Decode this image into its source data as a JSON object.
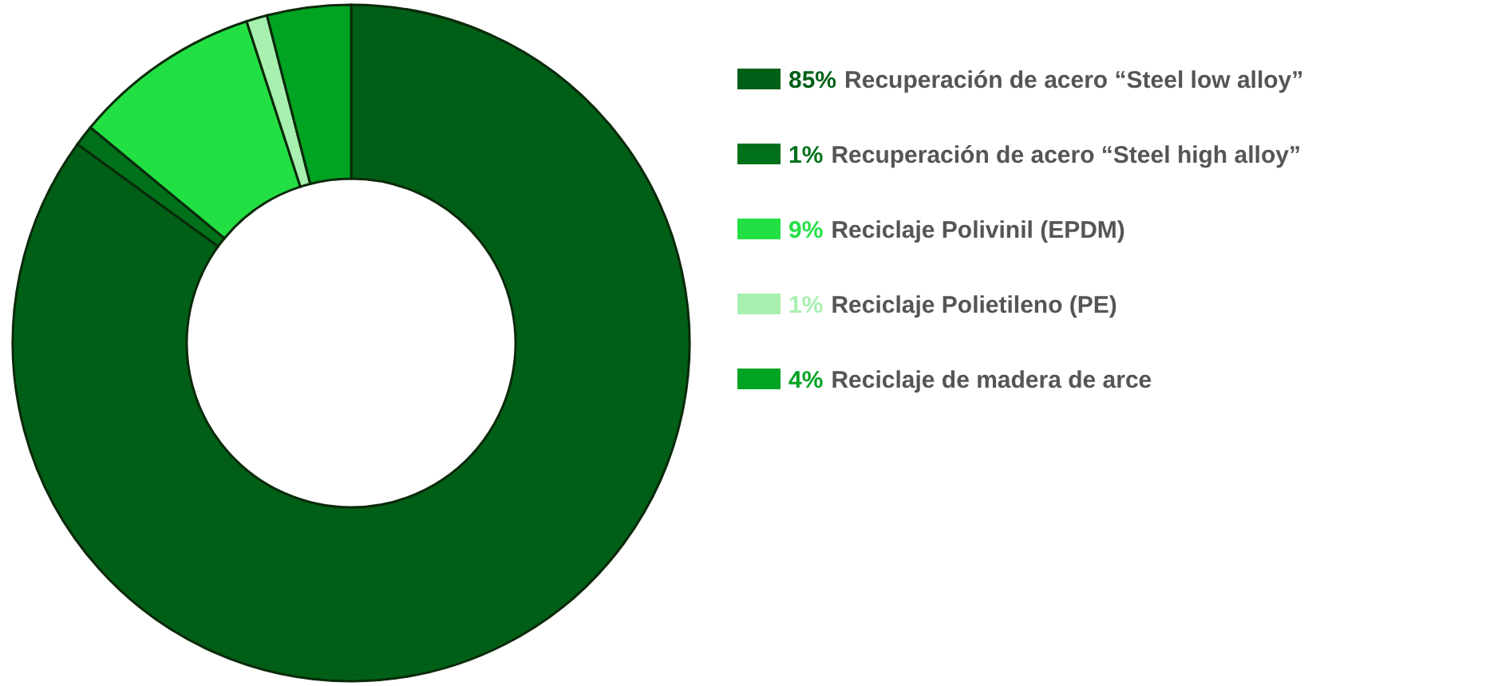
{
  "chart_data": {
    "type": "donut",
    "categories": [
      "Recuperación de acero “Steel low alloy”",
      "Recuperación de acero “Steel high alloy”",
      "Reciclaje Polivinil (EPDM)",
      "Reciclaje Polietileno (PE)",
      "Reciclaje de madera de arce"
    ],
    "values": [
      85,
      1,
      9,
      1,
      4
    ],
    "value_labels": [
      "85%",
      "1%",
      "9%",
      "1%",
      "4%"
    ],
    "colors": [
      "#005f17",
      "#00701a",
      "#22e044",
      "#a8f0b0",
      "#00a322"
    ],
    "legend": "right"
  }
}
